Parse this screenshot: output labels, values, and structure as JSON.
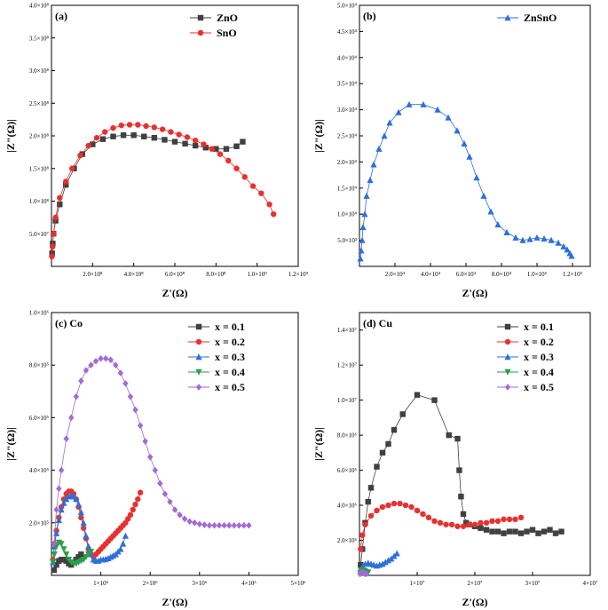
{
  "chart_data": [
    {
      "panel": "(a)",
      "type": "scatter",
      "xlabel": "Z'(Ω)",
      "ylabel": "|Z\"(Ω)|",
      "xlim": [
        0,
        1200000000.0
      ],
      "ylim": [
        0,
        400000000.0
      ],
      "x_ticks": [
        200000000.0,
        400000000.0,
        600000000.0,
        800000000.0,
        1000000000.0,
        1200000000.0
      ],
      "x_tick_labels": [
        "2.0×10⁸",
        "4.0×10⁸",
        "6.0×10⁸",
        "8.0×10⁸",
        "1.0×10⁹",
        "1.2×10⁹"
      ],
      "y_ticks": [
        50000000.0,
        100000000.0,
        150000000.0,
        200000000.0,
        250000000.0,
        300000000.0,
        350000000.0,
        400000000.0
      ],
      "y_tick_labels": [
        "5.0×10⁷",
        "1.0×10⁸",
        "1.5×10⁸",
        "2.0×10⁸",
        "2.5×10⁸",
        "3.0×10⁸",
        "3.5×10⁸",
        "4.0×10⁸"
      ],
      "legend": "top-right",
      "series": [
        {
          "name": "ZnO",
          "color": "#404040",
          "marker": "square",
          "x": [
            3000000.0,
            6000000.0,
            10000000.0,
            20000000.0,
            40000000.0,
            70000000.0,
            110000000.0,
            150000000.0,
            200000000.0,
            250000000.0,
            300000000.0,
            350000000.0,
            400000000.0,
            450000000.0,
            500000000.0,
            550000000.0,
            600000000.0,
            650000000.0,
            700000000.0,
            750000000.0,
            800000000.0,
            850000000.0,
            900000000.0,
            930000000.0
          ],
          "y": [
            20000000.0,
            35000000.0,
            50000000.0,
            70000000.0,
            95000000.0,
            125000000.0,
            150000000.0,
            172000000.0,
            187000000.0,
            195000000.0,
            199000000.0,
            201000000.0,
            201000000.0,
            199000000.0,
            197000000.0,
            194000000.0,
            191000000.0,
            188000000.0,
            185000000.0,
            182000000.0,
            180000000.0,
            180000000.0,
            184000000.0,
            191000000.0
          ]
        },
        {
          "name": "SnO",
          "color": "#e8312f",
          "marker": "circle",
          "x": [
            2000000.0,
            5000000.0,
            10000000.0,
            20000000.0,
            40000000.0,
            70000000.0,
            100000000.0,
            140000000.0,
            180000000.0,
            220000000.0,
            260000000.0,
            300000000.0,
            340000000.0,
            380000000.0,
            420000000.0,
            460000000.0,
            500000000.0,
            540000000.0,
            580000000.0,
            620000000.0,
            660000000.0,
            700000000.0,
            740000000.0,
            780000000.0,
            820000000.0,
            860000000.0,
            900000000.0,
            940000000.0,
            980000000.0,
            1020000000.0,
            1060000000.0,
            1080000000.0
          ],
          "y": [
            15000000.0,
            30000000.0,
            50000000.0,
            75000000.0,
            105000000.0,
            130000000.0,
            150000000.0,
            170000000.0,
            185000000.0,
            197000000.0,
            206000000.0,
            212000000.0,
            216000000.0,
            217000000.0,
            217000000.0,
            215000000.0,
            213000000.0,
            210000000.0,
            206000000.0,
            202000000.0,
            198000000.0,
            193000000.0,
            187000000.0,
            180000000.0,
            172000000.0,
            162000000.0,
            150000000.0,
            137000000.0,
            123000000.0,
            112000000.0,
            95000000.0,
            80000000.0
          ]
        }
      ]
    },
    {
      "panel": "(b)",
      "type": "line",
      "xlabel": "Z'(Ω)",
      "ylabel": "|Z\"(Ω)|",
      "xlim": [
        0,
        130000.0
      ],
      "ylim": [
        0,
        50000.0
      ],
      "x_ticks": [
        20000.0,
        40000.0,
        60000.0,
        80000.0,
        100000.0,
        120000.0
      ],
      "x_tick_labels": [
        "2.0×10⁴",
        "4.0×10⁴",
        "6.0×10⁴",
        "8.0×10⁴",
        "1.0×10⁵",
        "1.2×10⁵"
      ],
      "y_ticks": [
        5000.0,
        10000.0,
        15000.0,
        20000.0,
        25000.0,
        30000.0,
        35000.0,
        40000.0,
        45000.0,
        50000.0
      ],
      "y_tick_labels": [
        "5.0×10³",
        "1.0×10⁴",
        "1.5×10⁴",
        "2.0×10⁴",
        "2.5×10⁴",
        "3.0×10⁴",
        "3.5×10⁴",
        "4.0×10⁴",
        "4.5×10⁴",
        "5.0×10⁴"
      ],
      "legend": "top-right",
      "series": [
        {
          "name": "ZnSnO",
          "color": "#2e6fd8",
          "marker": "triangle",
          "x": [
            500,
            1000,
            1500,
            2000,
            3000,
            4000,
            6000,
            8000,
            11000,
            14000,
            17000,
            22000,
            28000,
            36000,
            44000,
            50000,
            55000,
            59000,
            62000,
            66000,
            70000,
            74000,
            78000,
            83000,
            88000,
            92000,
            96000,
            100000,
            104000,
            108000,
            112000,
            115000,
            117000,
            118500,
            119500
          ],
          "y": [
            1500,
            3000,
            5000,
            7500,
            10000,
            13500,
            16500,
            19500,
            22500,
            25000,
            27500,
            29500,
            31000,
            31000,
            30000,
            28500,
            26000,
            23500,
            21000,
            17000,
            13500,
            10500,
            8000,
            6500,
            5500,
            5000,
            5200,
            5500,
            5300,
            5000,
            4500,
            3800,
            3200,
            2500,
            2000
          ]
        }
      ]
    },
    {
      "panel": "(c) Co",
      "type": "scatter",
      "xlabel": "Z'(Ω)",
      "ylabel": "|Z\"(Ω)|",
      "xlim": [
        0,
        5000000.0
      ],
      "ylim": [
        0,
        1000000.0
      ],
      "x_ticks": [
        1000000.0,
        2000000.0,
        3000000.0,
        4000000.0,
        5000000.0
      ],
      "x_tick_labels": [
        "1×10⁶",
        "2×10⁶",
        "3×10⁶",
        "4×10⁶",
        "5×10⁶"
      ],
      "y_ticks": [
        200000.0,
        400000.0,
        600000.0,
        800000.0,
        1000000.0
      ],
      "y_tick_labels": [
        "2.0×10⁵",
        "4.0×10⁵",
        "6.0×10⁵",
        "8.0×10⁵",
        "1.0×10⁶"
      ],
      "legend": "top-right",
      "series": [
        {
          "name": "x = 0.1",
          "color": "#404040",
          "marker": "square",
          "x": [
            50000,
            100000,
            150000,
            200000,
            250000,
            300000,
            350000,
            400000,
            450000,
            500000,
            550000,
            600000
          ],
          "y": [
            20000,
            40000,
            55000,
            60000,
            60000,
            55000,
            45000,
            40000,
            50000,
            60000,
            70000,
            80000
          ]
        },
        {
          "name": "x = 0.2",
          "color": "#e8312f",
          "marker": "circle",
          "x": [
            30000,
            60000,
            100000,
            150000,
            200000,
            250000,
            300000,
            350000,
            400000,
            450000,
            500000,
            550000,
            600000,
            650000,
            700000,
            750000,
            800000,
            850000,
            900000,
            950000,
            1000000,
            1050000,
            1100000,
            1150000,
            1200000,
            1250000,
            1300000,
            1350000,
            1400000,
            1450000,
            1500000,
            1550000,
            1600000,
            1650000,
            1700000,
            1750000,
            1800000
          ],
          "y": [
            60000,
            120000,
            170000,
            220000,
            260000,
            290000,
            310000,
            320000,
            320000,
            310000,
            290000,
            260000,
            220000,
            180000,
            140000,
            100000,
            80000,
            70000,
            80000,
            90000,
            100000,
            110000,
            120000,
            130000,
            140000,
            150000,
            160000,
            170000,
            180000,
            190000,
            200000,
            215000,
            230000,
            250000,
            270000,
            290000,
            315000
          ]
        },
        {
          "name": "x = 0.3",
          "color": "#2e6fd8",
          "marker": "triangle",
          "x": [
            30000,
            60000,
            100000,
            150000,
            200000,
            250000,
            300000,
            350000,
            400000,
            450000,
            500000,
            550000,
            600000,
            650000,
            700000,
            750000,
            800000,
            850000,
            900000,
            950000,
            1000000,
            1050000,
            1100000,
            1150000,
            1200000,
            1250000,
            1300000,
            1350000,
            1400000,
            1450000,
            1500000
          ],
          "y": [
            50000,
            110000,
            160000,
            210000,
            250000,
            275000,
            290000,
            300000,
            305000,
            300000,
            290000,
            270000,
            240000,
            200000,
            150000,
            110000,
            80000,
            60000,
            55000,
            55000,
            60000,
            60000,
            62000,
            65000,
            70000,
            75000,
            80000,
            90000,
            100000,
            120000,
            150000
          ]
        },
        {
          "name": "x = 0.4",
          "color": "#2a9e4a",
          "marker": "triangle-down",
          "x": [
            30000,
            60000,
            100000,
            150000,
            200000,
            250000,
            300000,
            350000,
            400000,
            450000,
            500000,
            550000,
            600000,
            650000,
            700000,
            750000,
            800000
          ],
          "y": [
            50000,
            80000,
            110000,
            125000,
            120000,
            100000,
            80000,
            60000,
            50000,
            45000,
            45000,
            50000,
            55000,
            60000,
            70000,
            80000,
            90000
          ]
        },
        {
          "name": "x = 0.5",
          "color": "#a36ad6",
          "marker": "diamond",
          "x": [
            50000,
            100000,
            150000,
            200000,
            300000,
            400000,
            500000,
            600000,
            700000,
            800000,
            900000,
            1000000,
            1100000,
            1200000,
            1300000,
            1400000,
            1500000,
            1600000,
            1700000,
            1800000,
            1900000,
            2000000,
            2100000,
            2200000,
            2300000,
            2400000,
            2500000,
            2600000,
            2700000,
            2800000,
            2900000,
            3000000,
            3100000,
            3200000,
            3300000,
            3400000,
            3500000,
            3600000,
            3700000,
            3800000,
            3900000,
            4000000
          ],
          "y": [
            120000,
            250000,
            330000,
            400000,
            520000,
            600000,
            680000,
            740000,
            780000,
            800000,
            815000,
            825000,
            825000,
            820000,
            800000,
            770000,
            730000,
            680000,
            630000,
            570000,
            510000,
            450000,
            400000,
            350000,
            310000,
            280000,
            250000,
            230000,
            215000,
            205000,
            200000,
            195000,
            192000,
            190000,
            190000,
            190000,
            190000,
            190000,
            190000,
            190000,
            190000,
            190000
          ]
        }
      ]
    },
    {
      "panel": "(d) Cu",
      "type": "scatter",
      "xlabel": "Z'(Ω)",
      "ylabel": "|Z\"(Ω)|",
      "xlim": [
        0,
        40000000.0
      ],
      "ylim": [
        0,
        15000000.0
      ],
      "x_ticks": [
        10000000.0,
        20000000.0,
        30000000.0,
        40000000.0
      ],
      "x_tick_labels": [
        "1×10⁷",
        "2×10⁷",
        "3×10⁷",
        "4×10⁷"
      ],
      "y_ticks": [
        2000000.0,
        4000000.0,
        6000000.0,
        8000000.0,
        10000000.0,
        12000000.0,
        14000000.0
      ],
      "y_tick_labels": [
        "2.0×10⁶",
        "4.0×10⁶",
        "6.0×10⁶",
        "8.0×10⁶",
        "1.0×10⁷",
        "1.2×10⁷",
        "1.4×10⁷"
      ],
      "legend": "top-right",
      "series": [
        {
          "name": "x = 0.1",
          "color": "#404040",
          "marker": "square",
          "x": [
            200000,
            500000,
            1000000,
            1500000,
            2000000,
            3000000,
            4000000,
            5000000,
            6000000,
            7500000,
            10000000,
            13000000,
            15500000,
            17000000,
            17300000,
            17600000,
            18000000,
            18500000,
            19000000,
            20000000,
            21000000,
            22000000,
            23000000,
            24000000,
            25000000,
            26000000,
            27000000,
            28000000,
            29000000,
            30000000,
            31000000,
            32000000,
            33000000,
            34000000,
            35000000
          ],
          "y": [
            600000,
            1500000,
            3000000,
            4200000,
            5000000,
            6200000,
            7000000,
            7500000,
            8300000,
            9200000,
            10300000,
            10000000,
            8000000,
            7800000,
            6000000,
            4500000,
            3500000,
            3000000,
            2900000,
            2800000,
            2700000,
            2600000,
            2500000,
            2500000,
            2400000,
            2500000,
            2500000,
            2400000,
            2500000,
            2600000,
            2400000,
            2500000,
            2600000,
            2400000,
            2500000
          ]
        },
        {
          "name": "x = 0.2",
          "color": "#e8312f",
          "marker": "circle",
          "x": [
            200000,
            500000,
            1000000,
            2000000,
            3000000,
            4000000,
            5000000,
            6000000,
            7000000,
            8000000,
            9000000,
            10000000,
            11000000,
            12000000,
            13000000,
            14000000,
            15000000,
            16000000,
            17000000,
            18000000,
            19000000,
            20000000,
            21000000,
            22000000,
            23000000,
            24000000,
            25000000,
            26000000,
            27000000,
            28000000
          ],
          "y": [
            1500000,
            2300000,
            2900000,
            3400000,
            3700000,
            3900000,
            4000000,
            4100000,
            4100000,
            4000000,
            3900000,
            3700000,
            3500000,
            3300000,
            3100000,
            3000000,
            2900000,
            2900000,
            2800000,
            2800000,
            2900000,
            2900000,
            3000000,
            3000000,
            3100000,
            3100000,
            3200000,
            3200000,
            3200000,
            3300000
          ]
        },
        {
          "name": "x = 0.3",
          "color": "#2e6fd8",
          "marker": "triangle",
          "x": [
            200000,
            500000,
            1000000,
            1500000,
            2000000,
            2500000,
            3000000,
            3500000,
            4000000,
            4500000,
            5000000,
            5500000,
            6000000,
            6500000
          ],
          "y": [
            300000,
            500000,
            650000,
            700000,
            650000,
            600000,
            550000,
            600000,
            650000,
            750000,
            850000,
            950000,
            1100000,
            1250000
          ]
        },
        {
          "name": "x = 0.4",
          "color": "#2a9e4a",
          "marker": "triangle-down",
          "x": [
            150000,
            300000,
            500000,
            700000,
            900000,
            1100000,
            1300000,
            1500000
          ],
          "y": [
            150000,
            250000,
            300000,
            280000,
            250000,
            200000,
            180000,
            170000
          ]
        },
        {
          "name": "x = 0.5",
          "color": "#a36ad6",
          "marker": "diamond",
          "x": [
            100000,
            200000,
            400000,
            600000,
            800000,
            1000000,
            1200000
          ],
          "y": [
            80000,
            150000,
            180000,
            160000,
            120000,
            100000,
            90000
          ]
        }
      ]
    }
  ]
}
